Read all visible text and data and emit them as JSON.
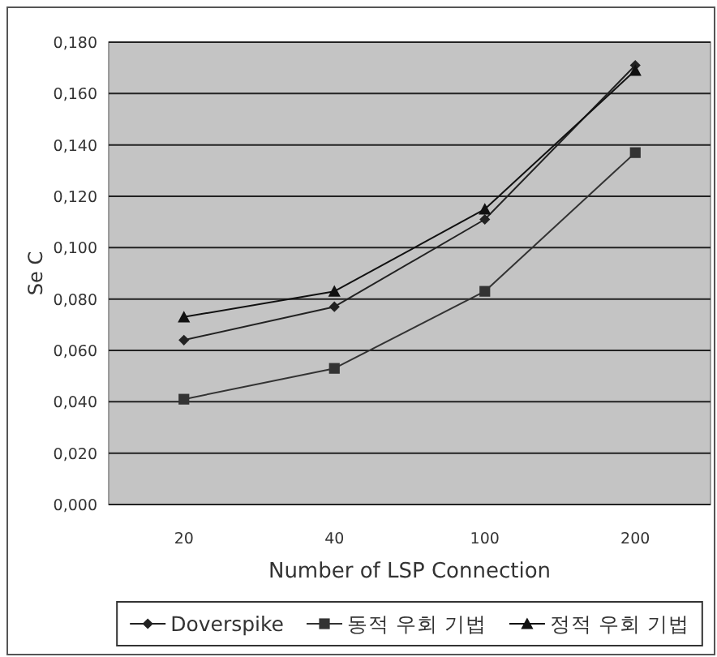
{
  "chart_data": {
    "type": "line",
    "xlabel": "Number of LSP Connection",
    "ylabel": "Se C",
    "categories": [
      "20",
      "40",
      "100",
      "200"
    ],
    "series": [
      {
        "name": "Doverspike",
        "color": "#222222",
        "marker": "diamond",
        "values": [
          0.064,
          0.077,
          0.111,
          0.171
        ]
      },
      {
        "name": "동적 우회 기법",
        "color": "#333333",
        "marker": "square",
        "values": [
          0.041,
          0.053,
          0.083,
          0.137
        ]
      },
      {
        "name": "정적 우회 기법",
        "color": "#111111",
        "marker": "triangle",
        "values": [
          0.073,
          0.083,
          0.115,
          0.169
        ]
      }
    ],
    "ylim": [
      0,
      0.18
    ],
    "yticks": [
      {
        "value": 0,
        "label": "0,000"
      },
      {
        "value": 0.02,
        "label": "0,020"
      },
      {
        "value": 0.04,
        "label": "0,040"
      },
      {
        "value": 0.06,
        "label": "0,060"
      },
      {
        "value": 0.08,
        "label": "0,080"
      },
      {
        "value": 0.1,
        "label": "0,100"
      },
      {
        "value": 0.12,
        "label": "0,120"
      },
      {
        "value": 0.14,
        "label": "0,140"
      },
      {
        "value": 0.16,
        "label": "0,160"
      },
      {
        "value": 0.18,
        "label": "0,180"
      }
    ],
    "grid": "y",
    "legend": "bottom"
  }
}
